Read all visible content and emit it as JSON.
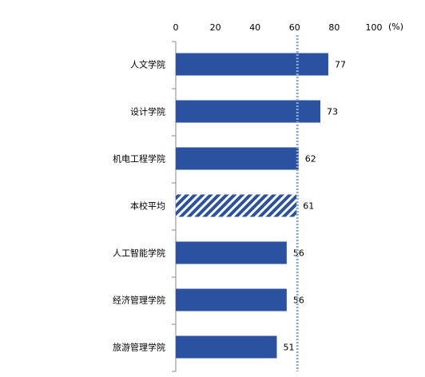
{
  "chart_data": {
    "type": "bar",
    "orientation": "horizontal",
    "categories": [
      "人文学院",
      "设计学院",
      "机电工程学院",
      "本校平均",
      "人工智能学院",
      "经济管理学院",
      "旅游管理学院"
    ],
    "values": [
      77,
      73,
      62,
      61,
      56,
      56,
      51
    ],
    "data_labels": [
      "77",
      "73",
      "62",
      "61",
      "56",
      "56",
      "51"
    ],
    "highlight_index": 3,
    "reference_line": 61,
    "xlim": [
      0,
      100
    ],
    "x_ticks": [
      0,
      20,
      40,
      60,
      80,
      100
    ],
    "x_tick_labels": [
      "0",
      "20",
      "40",
      "60",
      "80",
      "100"
    ],
    "unit_label": "(%)",
    "xaxis_position": "top",
    "grid": false,
    "colors": {
      "bar": "#2A52A0",
      "reference_line": "#8FA8CF"
    }
  }
}
